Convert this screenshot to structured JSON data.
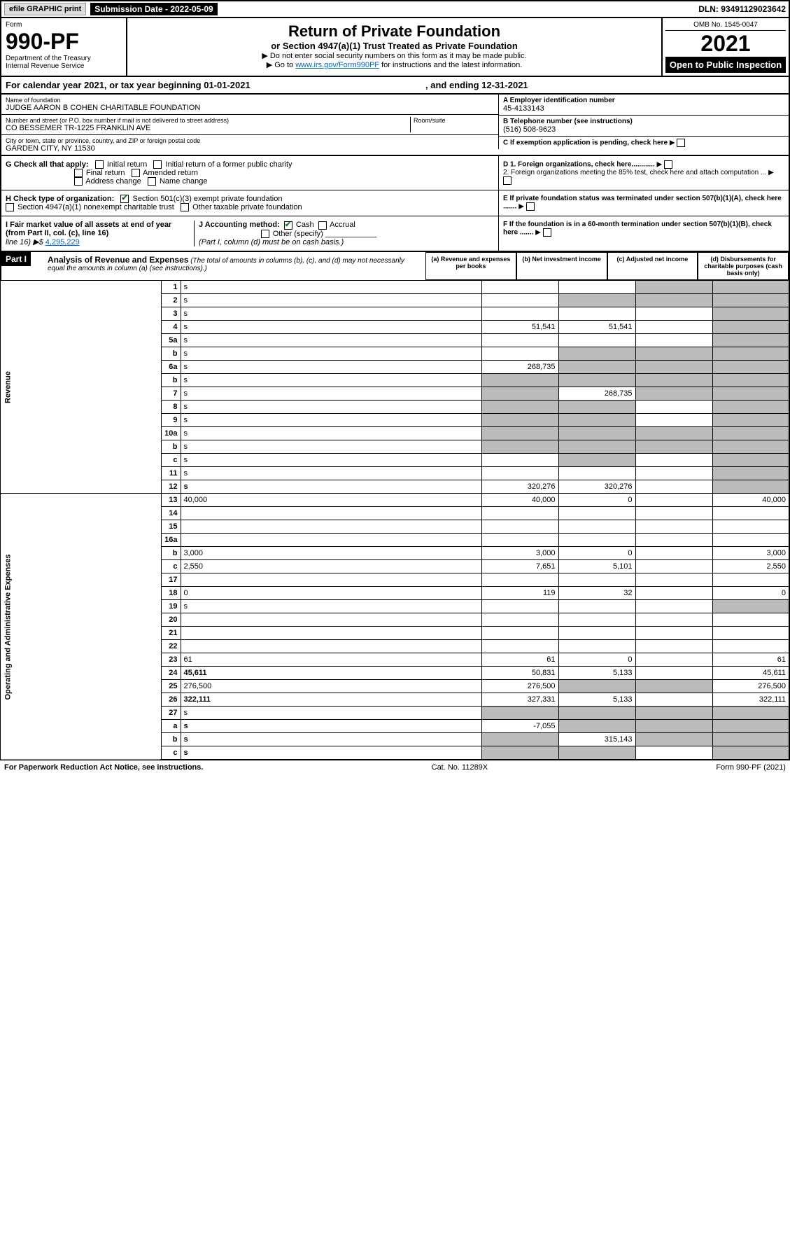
{
  "topbar": {
    "efile": "efile GRAPHIC print",
    "submission": "Submission Date - 2022-05-09",
    "dln": "DLN: 93491129023642"
  },
  "header": {
    "form_label": "Form",
    "form_number": "990-PF",
    "dept1": "Department of the Treasury",
    "dept2": "Internal Revenue Service",
    "title": "Return of Private Foundation",
    "subtitle": "or Section 4947(a)(1) Trust Treated as Private Foundation",
    "instr1": "▶ Do not enter social security numbers on this form as it may be made public.",
    "instr2_pre": "▶ Go to ",
    "instr2_link": "www.irs.gov/Form990PF",
    "instr2_post": " for instructions and the latest information.",
    "omb": "OMB No. 1545-0047",
    "year": "2021",
    "open": "Open to Public Inspection"
  },
  "calyear": {
    "text": "For calendar year 2021, or tax year beginning 01-01-2021",
    "ending": ", and ending 12-31-2021"
  },
  "foundation": {
    "name_label": "Name of foundation",
    "name": "JUDGE AARON B COHEN CHARITABLE FOUNDATION",
    "addr_label": "Number and street (or P.O. box number if mail is not delivered to street address)",
    "addr": "CO BESSEMER TR-1225 FRANKLIN AVE",
    "room_label": "Room/suite",
    "city_label": "City or town, state or province, country, and ZIP or foreign postal code",
    "city": "GARDEN CITY, NY  11530",
    "ein_label": "A Employer identification number",
    "ein": "45-4133143",
    "phone_label": "B Telephone number (see instructions)",
    "phone": "(516) 508-9623",
    "c_label": "C If exemption application is pending, check here"
  },
  "checks": {
    "g_label": "G Check all that apply:",
    "g1": "Initial return",
    "g2": "Initial return of a former public charity",
    "g3": "Final return",
    "g4": "Amended return",
    "g5": "Address change",
    "g6": "Name change",
    "h_label": "H Check type of organization:",
    "h1": "Section 501(c)(3) exempt private foundation",
    "h2": "Section 4947(a)(1) nonexempt charitable trust",
    "h3": "Other taxable private foundation",
    "i_label": "I Fair market value of all assets at end of year (from Part II, col. (c), line 16)",
    "i_val": "4,295,229",
    "j_label": "J Accounting method:",
    "j1": "Cash",
    "j2": "Accrual",
    "j3": "Other (specify)",
    "j_note": "(Part I, column (d) must be on cash basis.)",
    "d1": "D 1. Foreign organizations, check here............",
    "d2": "2. Foreign organizations meeting the 85% test, check here and attach computation ...",
    "e": "E  If private foundation status was terminated under section 507(b)(1)(A), check here .......",
    "f": "F  If the foundation is in a 60-month termination under section 507(b)(1)(B), check here .......",
    "line16": "line 16) ▶$"
  },
  "part1": {
    "badge": "Part I",
    "title": "Analysis of Revenue and Expenses",
    "note": " (The total of amounts in columns (b), (c), and (d) may not necessarily equal the amounts in column (a) (see instructions).)",
    "col_a": "(a) Revenue and expenses per books",
    "col_b": "(b) Net investment income",
    "col_c": "(c) Adjusted net income",
    "col_d": "(d) Disbursements for charitable purposes (cash basis only)"
  },
  "vlabels": {
    "revenue": "Revenue",
    "expenses": "Operating and Administrative Expenses"
  },
  "rows": [
    {
      "n": "1",
      "d": "s",
      "a": "",
      "b": "",
      "c": "s"
    },
    {
      "n": "2",
      "d": "s",
      "a": "",
      "b": "s",
      "c": "s"
    },
    {
      "n": "3",
      "d": "s",
      "a": "",
      "b": "",
      "c": ""
    },
    {
      "n": "4",
      "d": "s",
      "a": "51,541",
      "b": "51,541",
      "c": ""
    },
    {
      "n": "5a",
      "d": "s",
      "a": "",
      "b": "",
      "c": ""
    },
    {
      "n": "b",
      "d": "s",
      "a": "",
      "b": "s",
      "c": "s"
    },
    {
      "n": "6a",
      "d": "s",
      "a": "268,735",
      "b": "s",
      "c": "s"
    },
    {
      "n": "b",
      "d": "s",
      "a": "s",
      "b": "s",
      "c": "s"
    },
    {
      "n": "7",
      "d": "s",
      "a": "s",
      "b": "268,735",
      "c": "s"
    },
    {
      "n": "8",
      "d": "s",
      "a": "s",
      "b": "s",
      "c": ""
    },
    {
      "n": "9",
      "d": "s",
      "a": "s",
      "b": "s",
      "c": ""
    },
    {
      "n": "10a",
      "d": "s",
      "a": "s",
      "b": "s",
      "c": "s"
    },
    {
      "n": "b",
      "d": "s",
      "a": "s",
      "b": "s",
      "c": "s"
    },
    {
      "n": "c",
      "d": "s",
      "a": "",
      "b": "s",
      "c": ""
    },
    {
      "n": "11",
      "d": "s",
      "a": "",
      "b": "",
      "c": ""
    },
    {
      "n": "12",
      "d": "s",
      "a": "320,276",
      "b": "320,276",
      "c": "",
      "bold": true
    },
    {
      "n": "13",
      "d": "40,000",
      "a": "40,000",
      "b": "0",
      "c": ""
    },
    {
      "n": "14",
      "d": "",
      "a": "",
      "b": "",
      "c": ""
    },
    {
      "n": "15",
      "d": "",
      "a": "",
      "b": "",
      "c": ""
    },
    {
      "n": "16a",
      "d": "",
      "a": "",
      "b": "",
      "c": ""
    },
    {
      "n": "b",
      "d": "3,000",
      "a": "3,000",
      "b": "0",
      "c": ""
    },
    {
      "n": "c",
      "d": "2,550",
      "a": "7,651",
      "b": "5,101",
      "c": ""
    },
    {
      "n": "17",
      "d": "",
      "a": "",
      "b": "",
      "c": ""
    },
    {
      "n": "18",
      "d": "0",
      "a": "119",
      "b": "32",
      "c": ""
    },
    {
      "n": "19",
      "d": "s",
      "a": "",
      "b": "",
      "c": ""
    },
    {
      "n": "20",
      "d": "",
      "a": "",
      "b": "",
      "c": ""
    },
    {
      "n": "21",
      "d": "",
      "a": "",
      "b": "",
      "c": ""
    },
    {
      "n": "22",
      "d": "",
      "a": "",
      "b": "",
      "c": ""
    },
    {
      "n": "23",
      "d": "61",
      "a": "61",
      "b": "0",
      "c": ""
    },
    {
      "n": "24",
      "d": "45,611",
      "a": "50,831",
      "b": "5,133",
      "c": "",
      "bold": true
    },
    {
      "n": "25",
      "d": "276,500",
      "a": "276,500",
      "b": "s",
      "c": "s"
    },
    {
      "n": "26",
      "d": "322,111",
      "a": "327,331",
      "b": "5,133",
      "c": "",
      "bold": true
    },
    {
      "n": "27",
      "d": "s",
      "a": "s",
      "b": "s",
      "c": "s"
    },
    {
      "n": "a",
      "d": "s",
      "a": "-7,055",
      "b": "s",
      "c": "s",
      "bold": true
    },
    {
      "n": "b",
      "d": "s",
      "a": "s",
      "b": "315,143",
      "c": "s",
      "bold": true
    },
    {
      "n": "c",
      "d": "s",
      "a": "s",
      "b": "s",
      "c": "",
      "bold": true
    }
  ],
  "footer": {
    "left": "For Paperwork Reduction Act Notice, see instructions.",
    "mid": "Cat. No. 11289X",
    "right": "Form 990-PF (2021)"
  }
}
